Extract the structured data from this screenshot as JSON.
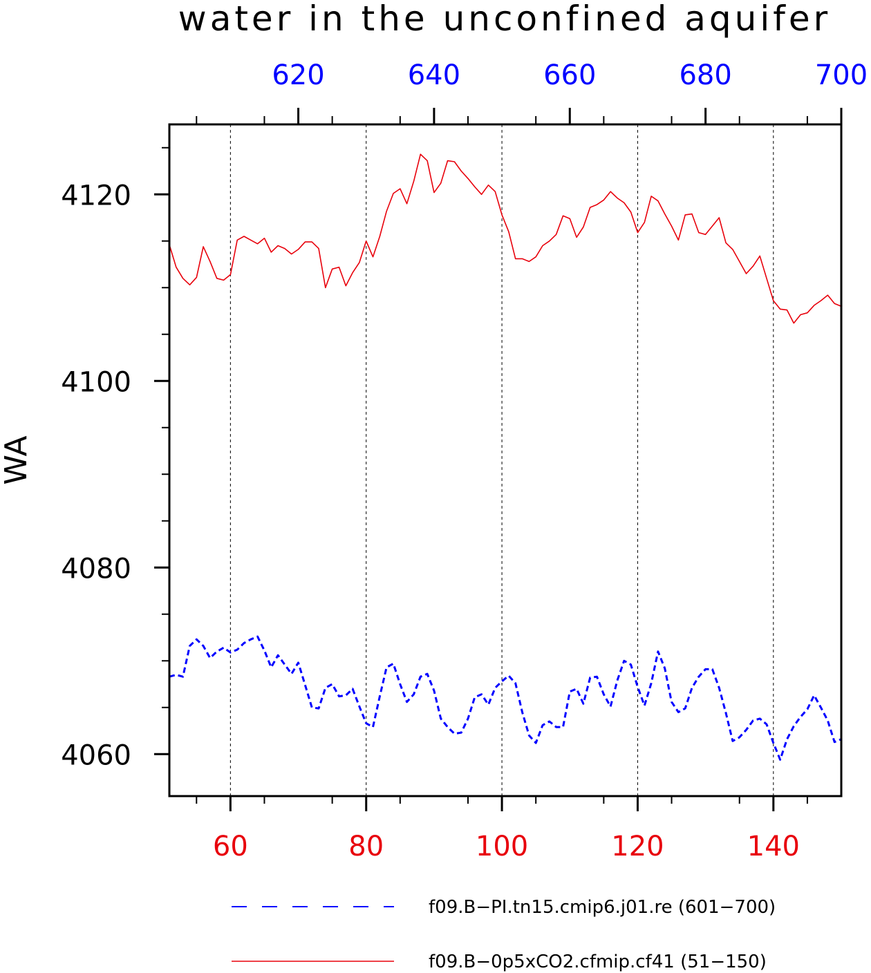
{
  "chart_data": {
    "type": "line",
    "title": "water in the unconfined aquifer",
    "xlabel": "",
    "ylabel": "WA",
    "ylim": [
      4055.5,
      4127.5
    ],
    "grid": "dashed vertical lines at bottom-axis major ticks",
    "legend_placement": "bottom",
    "bottom_axis": {
      "range": [
        51,
        150
      ],
      "ticks": [
        60,
        80,
        100,
        120,
        140
      ],
      "color": "#e8000b"
    },
    "top_axis": {
      "range": [
        601,
        700
      ],
      "ticks": [
        620,
        640,
        660,
        680,
        700
      ],
      "color": "#0000ff"
    },
    "left_axis": {
      "ticks": [
        4060,
        4080,
        4100,
        4120
      ]
    },
    "series": [
      {
        "name": "f09.B−PI.tn15.cmip6.j01.re (601−700)",
        "axis": "top",
        "color": "#0000ff",
        "style": "dashed",
        "x": [
          601,
          602,
          603,
          604,
          605,
          606,
          607,
          608,
          609,
          610,
          611,
          612,
          613,
          614,
          615,
          616,
          617,
          618,
          619,
          620,
          621,
          622,
          623,
          624,
          625,
          626,
          627,
          628,
          629,
          630,
          631,
          632,
          633,
          634,
          635,
          636,
          637,
          638,
          639,
          640,
          641,
          642,
          643,
          644,
          645,
          646,
          647,
          648,
          649,
          650,
          651,
          652,
          653,
          654,
          655,
          656,
          657,
          658,
          659,
          660,
          661,
          662,
          663,
          664,
          665,
          666,
          667,
          668,
          669,
          670,
          671,
          672,
          673,
          674,
          675,
          676,
          677,
          678,
          679,
          680,
          681,
          682,
          683,
          684,
          685,
          686,
          687,
          688,
          689,
          690,
          691,
          692,
          693,
          694,
          695,
          696,
          697,
          698,
          699,
          700
        ],
        "values": [
          4068.3,
          4068.5,
          4068.3,
          4071.6,
          4072.3,
          4071.6,
          4070.3,
          4071.0,
          4071.4,
          4070.9,
          4071.2,
          4071.9,
          4072.3,
          4072.6,
          4071.1,
          4069.3,
          4070.6,
          4069.6,
          4068.6,
          4069.8,
          4067.4,
          4065.0,
          4064.9,
          4067.1,
          4067.5,
          4066.2,
          4066.3,
          4067.0,
          4065.1,
          4063.3,
          4062.9,
          4066.2,
          4069.3,
          4069.7,
          4067.5,
          4065.6,
          4066.4,
          4068.3,
          4068.6,
          4066.8,
          4063.8,
          4062.9,
          4062.2,
          4062.3,
          4063.8,
          4066.1,
          4066.4,
          4065.3,
          4067.1,
          4067.8,
          4068.4,
          4067.6,
          4064.5,
          4062.0,
          4061.2,
          4063.1,
          4063.5,
          4062.9,
          4062.9,
          4066.7,
          4067.0,
          4065.4,
          4068.2,
          4068.3,
          4066.4,
          4065.1,
          4067.9,
          4070.0,
          4069.6,
          4067.2,
          4065.2,
          4067.6,
          4071.0,
          4069.2,
          4065.6,
          4064.5,
          4064.9,
          4067.1,
          4068.3,
          4069.1,
          4069.1,
          4067.1,
          4064.4,
          4061.4,
          4061.8,
          4062.6,
          4063.6,
          4063.8,
          4063.2,
          4061.2,
          4059.4,
          4061.6,
          4063.0,
          4064.0,
          4064.8,
          4066.3,
          4065.0,
          4063.6,
          4061.3,
          4061.6
        ]
      },
      {
        "name": "f09.B−0p5xCO2.cfmip.cf41 (51−150)",
        "axis": "bottom",
        "color": "#e8000b",
        "style": "solid",
        "x": [
          51,
          52,
          53,
          54,
          55,
          56,
          57,
          58,
          59,
          60,
          61,
          62,
          63,
          64,
          65,
          66,
          67,
          68,
          69,
          70,
          71,
          72,
          73,
          74,
          75,
          76,
          77,
          78,
          79,
          80,
          81,
          82,
          83,
          84,
          85,
          86,
          87,
          88,
          89,
          90,
          91,
          92,
          93,
          94,
          95,
          96,
          97,
          98,
          99,
          100,
          101,
          102,
          103,
          104,
          105,
          106,
          107,
          108,
          109,
          110,
          111,
          112,
          113,
          114,
          115,
          116,
          117,
          118,
          119,
          120,
          121,
          122,
          123,
          124,
          125,
          126,
          127,
          128,
          129,
          130,
          131,
          132,
          133,
          134,
          135,
          136,
          137,
          138,
          139,
          140,
          141,
          142,
          143,
          144,
          145,
          146,
          147,
          148,
          149,
          150
        ],
        "values": [
          4114.6,
          4112.2,
          4111.0,
          4110.3,
          4111.1,
          4114.4,
          4112.8,
          4111.0,
          4110.8,
          4111.4,
          4115.1,
          4115.5,
          4115.1,
          4114.7,
          4115.3,
          4113.8,
          4114.5,
          4114.2,
          4113.6,
          4114.1,
          4114.9,
          4114.9,
          4114.2,
          4110.0,
          4112.0,
          4112.2,
          4110.2,
          4111.6,
          4112.7,
          4115.0,
          4113.3,
          4115.5,
          4118.2,
          4120.1,
          4120.6,
          4119.0,
          4121.4,
          4124.3,
          4123.6,
          4120.2,
          4121.2,
          4123.6,
          4123.5,
          4122.5,
          4121.7,
          4120.8,
          4120.0,
          4121.0,
          4120.3,
          4117.8,
          4116.0,
          4113.1,
          4113.1,
          4112.8,
          4113.3,
          4114.5,
          4115.0,
          4115.7,
          4117.7,
          4117.4,
          4115.4,
          4116.5,
          4118.6,
          4118.9,
          4119.4,
          4120.3,
          4119.6,
          4119.1,
          4118.1,
          4115.9,
          4117.0,
          4119.8,
          4119.3,
          4117.9,
          4116.6,
          4115.1,
          4117.8,
          4117.9,
          4115.9,
          4115.7,
          4116.6,
          4117.5,
          4114.8,
          4114.1,
          4112.8,
          4111.5,
          4112.3,
          4113.4,
          4111.0,
          4108.6,
          4107.7,
          4107.6,
          4106.2,
          4107.1,
          4107.3,
          4108.1,
          4108.6,
          4109.2,
          4108.3,
          4108.0
        ]
      }
    ]
  }
}
